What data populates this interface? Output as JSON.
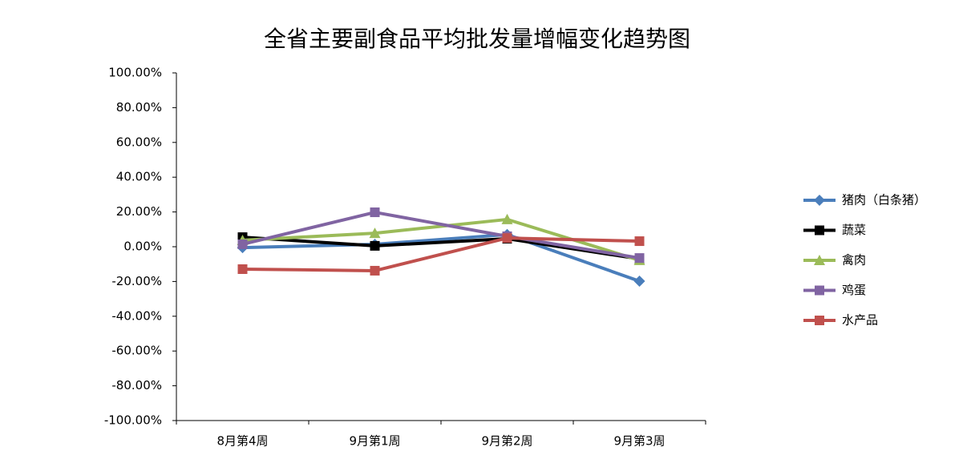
{
  "chart_data": {
    "type": "line",
    "title": "全省主要副食品平均批发量增幅变化趋势图",
    "categories": [
      "8月第4周",
      "9月第1周",
      "9月第2周",
      "9月第3周"
    ],
    "series": [
      {
        "name": "猪肉（白条猪）",
        "color": "#4a7ebb",
        "marker": "diamond",
        "values": [
          -0.5,
          1.4,
          7,
          -19.8
        ]
      },
      {
        "name": "蔬菜",
        "color": "#000000",
        "marker": "square",
        "values": [
          5.5,
          0.5,
          4.6,
          -7
        ]
      },
      {
        "name": "禽肉",
        "color": "#9bbb59",
        "marker": "triangle",
        "values": [
          3.7,
          7.8,
          15.7,
          -7.8
        ]
      },
      {
        "name": "鸡蛋",
        "color": "#8064a2",
        "marker": "square",
        "values": [
          1.4,
          19.8,
          6,
          -6.5
        ]
      },
      {
        "name": "水产品",
        "color": "#c0504d",
        "marker": "square",
        "values": [
          -12.9,
          -13.8,
          5,
          3.2
        ]
      }
    ],
    "ylim": [
      -100,
      100
    ],
    "yticks": [
      {
        "value": -100,
        "label": "-100.00%"
      },
      {
        "value": -80,
        "label": "-80.00%"
      },
      {
        "value": -60,
        "label": "-60.00%"
      },
      {
        "value": -40,
        "label": "-40.00%"
      },
      {
        "value": -20,
        "label": "-20.00%"
      },
      {
        "value": 0,
        "label": "0.00%"
      },
      {
        "value": 20,
        "label": "20.00%"
      },
      {
        "value": 40,
        "label": "40.00%"
      },
      {
        "value": 60,
        "label": "60.00%"
      },
      {
        "value": 80,
        "label": "80.00%"
      },
      {
        "value": 100,
        "label": "100.00%"
      }
    ],
    "grid": false,
    "legend": "right"
  }
}
